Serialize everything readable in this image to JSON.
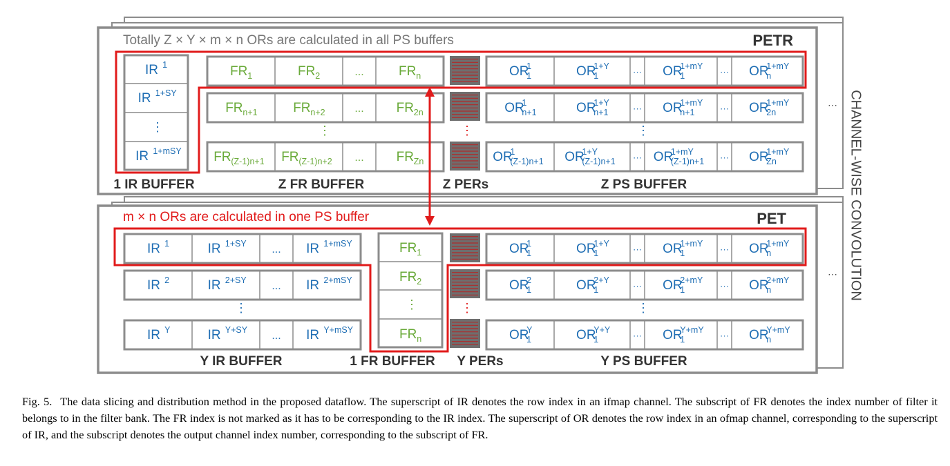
{
  "colors": {
    "frame": "#8c8c8c",
    "ir": "#1f6eb4",
    "fr": "#6aaa3a",
    "or": "#1f6eb4",
    "red": "#e11b1b",
    "bold": "#333333",
    "per_fill": "#6e6e6e",
    "per_line": "#b02a2a"
  },
  "ellipsis": "...",
  "vdots": "⋮",
  "cdots": "···",
  "petr": {
    "title": "PETR",
    "note": "Totally Z × Y × m × n ORs are calculated in all PS buffers",
    "ir": [
      {
        "b": "IR",
        "sup": "1"
      },
      {
        "b": "IR",
        "sup": "1+SY"
      },
      {
        "b": "IR",
        "sup": "1+mSY"
      }
    ],
    "fr_rows": [
      [
        {
          "b": "FR",
          "sub": "1"
        },
        {
          "b": "FR",
          "sub": "2"
        },
        {
          "b": "FR",
          "sub": "n"
        }
      ],
      [
        {
          "b": "FR",
          "sub": "n+1"
        },
        {
          "b": "FR",
          "sub": "n+2"
        },
        {
          "b": "FR",
          "sub": "2n"
        }
      ],
      [
        {
          "b": "FR",
          "sub": "(Z-1)n+1"
        },
        {
          "b": "FR",
          "sub": "(Z-1)n+2"
        },
        {
          "b": "FR",
          "sub": "Zn"
        }
      ]
    ],
    "or_rows": [
      [
        {
          "b": "OR",
          "sup": "1",
          "sub": "1"
        },
        {
          "b": "OR",
          "sup": "1+Y",
          "sub": "1"
        },
        {
          "b": "OR",
          "sup": "1+mY",
          "sub": "1"
        },
        {
          "b": "OR",
          "sup": "1+mY",
          "sub": "n"
        }
      ],
      [
        {
          "b": "OR",
          "sup": "1",
          "sub": "n+1"
        },
        {
          "b": "OR",
          "sup": "1+Y",
          "sub": "n+1"
        },
        {
          "b": "OR",
          "sup": "1+mY",
          "sub": "n+1"
        },
        {
          "b": "OR",
          "sup": "1+mY",
          "sub": "2n"
        }
      ],
      [
        {
          "b": "OR",
          "sup": "1",
          "sub": "(Z-1)n+1"
        },
        {
          "b": "OR",
          "sup": "1+Y",
          "sub": "(Z-1)n+1"
        },
        {
          "b": "OR",
          "sup": "1+mY",
          "sub": "(Z-1)n+1"
        },
        {
          "b": "OR",
          "sup": "1+mY",
          "sub": "Zn"
        }
      ]
    ],
    "labels": {
      "ir": "1 IR BUFFER",
      "fr": "Z FR BUFFER",
      "per": "Z PERs",
      "ps": "Z PS BUFFER"
    }
  },
  "pet": {
    "title": "PET",
    "note": "m × n ORs are calculated in one PS buffer",
    "ir_rows": [
      [
        {
          "b": "IR",
          "sup": "1"
        },
        {
          "b": "IR",
          "sup": "1+SY"
        },
        {
          "b": "IR",
          "sup": "1+mSY"
        }
      ],
      [
        {
          "b": "IR",
          "sup": "2"
        },
        {
          "b": "IR",
          "sup": "2+SY"
        },
        {
          "b": "IR",
          "sup": "2+mSY"
        }
      ],
      [
        {
          "b": "IR",
          "sup": "Y"
        },
        {
          "b": "IR",
          "sup": "Y+SY"
        },
        {
          "b": "IR",
          "sup": "Y+mSY"
        }
      ]
    ],
    "fr": [
      {
        "b": "FR",
        "sub": "1"
      },
      {
        "b": "FR",
        "sub": "2"
      },
      {
        "b": "FR",
        "sub": "n"
      }
    ],
    "or_rows": [
      [
        {
          "b": "OR",
          "sup": "1",
          "sub": "1"
        },
        {
          "b": "OR",
          "sup": "1+Y",
          "sub": "1"
        },
        {
          "b": "OR",
          "sup": "1+mY",
          "sub": "1"
        },
        {
          "b": "OR",
          "sup": "1+mY",
          "sub": "n"
        }
      ],
      [
        {
          "b": "OR",
          "sup": "2",
          "sub": "1"
        },
        {
          "b": "OR",
          "sup": "2+Y",
          "sub": "1"
        },
        {
          "b": "OR",
          "sup": "2+mY",
          "sub": "1"
        },
        {
          "b": "OR",
          "sup": "2+mY",
          "sub": "n"
        }
      ],
      [
        {
          "b": "OR",
          "sup": "Y",
          "sub": "1"
        },
        {
          "b": "OR",
          "sup": "Y+Y",
          "sub": "1"
        },
        {
          "b": "OR",
          "sup": "Y+mY",
          "sub": "1"
        },
        {
          "b": "OR",
          "sup": "Y+mY",
          "sub": "n"
        }
      ]
    ],
    "labels": {
      "ir": "Y IR BUFFER",
      "fr": "1 FR BUFFER",
      "per": "Y PERs",
      "ps": "Y PS BUFFER"
    }
  },
  "side_label": "CHANNEL-WISE CONVOLUTION",
  "caption": {
    "label": "Fig. 5.",
    "text": "The data slicing and distribution method in the proposed dataflow. The superscript of IR denotes the row index in an ifmap channel. The subscript of FR denotes the index number of filter it belongs to in the filter bank. The FR index is not marked as it has to be corresponding to the IR index. The superscript of OR denotes the row index in an ofmap channel, corresponding to the superscript of IR, and the subscript denotes the output channel index number, corresponding to the subscript of FR."
  }
}
